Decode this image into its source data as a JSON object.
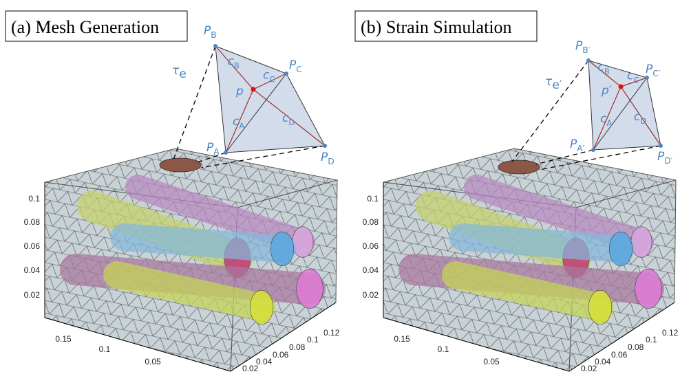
{
  "panels": [
    {
      "title": "(a) Mesh Generation",
      "tau": {
        "base": "τ",
        "sub": "e"
      },
      "vertices": [
        {
          "base": "P",
          "sub": "B"
        },
        {
          "base": "P",
          "sub": "C"
        },
        {
          "base": "P",
          "sub": "A"
        },
        {
          "base": "P",
          "sub": "D"
        }
      ],
      "point": {
        "base": "p"
      },
      "coords": [
        {
          "base": "c",
          "sub": "B"
        },
        {
          "base": "c",
          "sub": "C"
        },
        {
          "base": "c",
          "sub": "A"
        },
        {
          "base": "c",
          "sub": "D"
        }
      ],
      "z_ticks": [
        "0.1",
        "0.08",
        "0.06",
        "0.04",
        "0.02"
      ],
      "x_ticks": [
        "0.15",
        "0.1",
        "0.05"
      ],
      "y_ticks": [
        "0.02",
        "0.04",
        "0.06",
        "0.08",
        "0.1",
        "0.12"
      ]
    },
    {
      "title": "(b) Strain Simulation",
      "tau": {
        "base": "τ",
        "sub": "e′"
      },
      "vertices": [
        {
          "base": "P",
          "sub": "B′"
        },
        {
          "base": "P",
          "sub": "C′"
        },
        {
          "base": "P",
          "sub": "A′"
        },
        {
          "base": "P",
          "sub": "D′"
        }
      ],
      "point": {
        "base": "p′"
      },
      "coords": [
        {
          "base": "c",
          "sub": "B"
        },
        {
          "base": "c",
          "sub": "C"
        },
        {
          "base": "c",
          "sub": "A"
        },
        {
          "base": "c",
          "sub": "D"
        }
      ],
      "z_ticks": [
        "0.1",
        "0.08",
        "0.06",
        "0.04",
        "0.02"
      ],
      "x_ticks": [
        "0.15",
        "0.1",
        "0.05"
      ],
      "y_ticks": [
        "0.02",
        "0.04",
        "0.06",
        "0.08",
        "0.1",
        "0.12"
      ]
    }
  ]
}
